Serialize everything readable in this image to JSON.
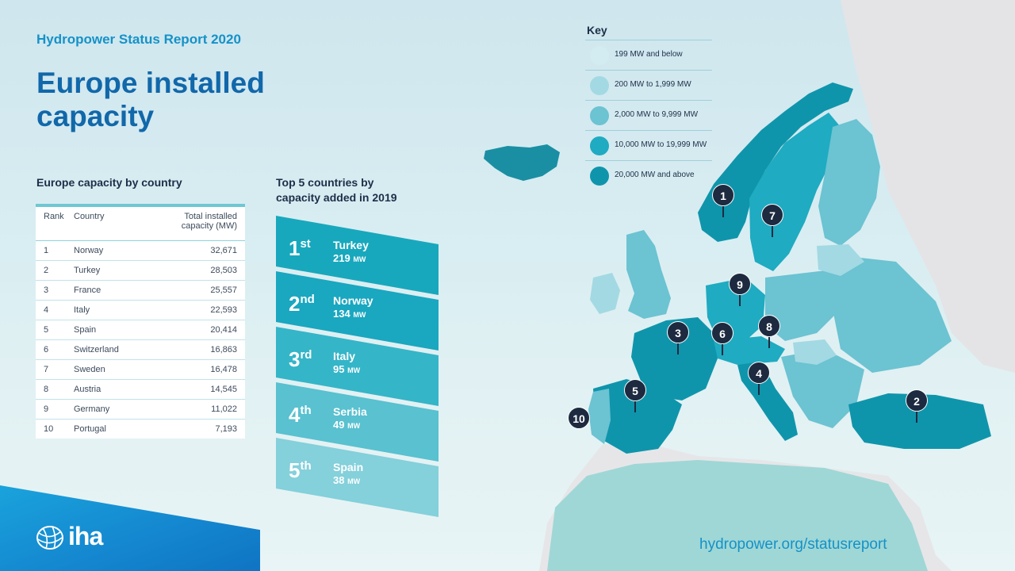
{
  "report_label": "Hydropower Status Report 2020",
  "title": "Europe installed capacity",
  "capacity_section": {
    "heading": "Europe capacity by country",
    "columns": {
      "rank": "Rank",
      "country": "Country",
      "capacity_line1": "Total installed",
      "capacity_line2": "capacity (MW)"
    },
    "rows": [
      {
        "rank": "1",
        "country": "Norway",
        "capacity": "32,671"
      },
      {
        "rank": "2",
        "country": "Turkey",
        "capacity": "28,503"
      },
      {
        "rank": "3",
        "country": "France",
        "capacity": "25,557"
      },
      {
        "rank": "4",
        "country": "Italy",
        "capacity": "22,593"
      },
      {
        "rank": "5",
        "country": "Spain",
        "capacity": "20,414"
      },
      {
        "rank": "6",
        "country": "Switzerland",
        "capacity": "16,863"
      },
      {
        "rank": "7",
        "country": "Sweden",
        "capacity": "16,478"
      },
      {
        "rank": "8",
        "country": "Austria",
        "capacity": "14,545"
      },
      {
        "rank": "9",
        "country": "Germany",
        "capacity": "11,022"
      },
      {
        "rank": "10",
        "country": "Portugal",
        "capacity": "7,193"
      }
    ]
  },
  "top5_section": {
    "heading_line1": "Top 5 countries by",
    "heading_line2": "capacity added in 2019",
    "unit": "MW",
    "items": [
      {
        "num": "1",
        "suffix": "st",
        "country": "Turkey",
        "value": "219",
        "color": "#18a8bd"
      },
      {
        "num": "2",
        "suffix": "nd",
        "country": "Norway",
        "value": "134",
        "color": "#1aa7c0"
      },
      {
        "num": "3",
        "suffix": "rd",
        "country": "Italy",
        "value": "95",
        "color": "#35b5c8"
      },
      {
        "num": "4",
        "suffix": "th",
        "country": "Serbia",
        "value": "49",
        "color": "#59c1d0"
      },
      {
        "num": "5",
        "suffix": "th",
        "country": "Spain",
        "value": "38",
        "color": "#84d0db"
      }
    ]
  },
  "key": {
    "title": "Key",
    "items": [
      {
        "label": "199 MW and below",
        "color": "#d2ecf1"
      },
      {
        "label": "200 MW to 1,999 MW",
        "color": "#a3d9e3"
      },
      {
        "label": "2,000 MW to 9,999 MW",
        "color": "#6cc3d2"
      },
      {
        "label": "10,000 MW to 19,999 MW",
        "color": "#1fabc1"
      },
      {
        "label": "20,000 MW and above",
        "color": "#0f95ab"
      }
    ]
  },
  "map_markers": [
    "1",
    "2",
    "3",
    "4",
    "5",
    "6",
    "7",
    "8",
    "9",
    "10"
  ],
  "brand": {
    "logo_text": "iha",
    "url": "hydropower.org/statusreport"
  }
}
